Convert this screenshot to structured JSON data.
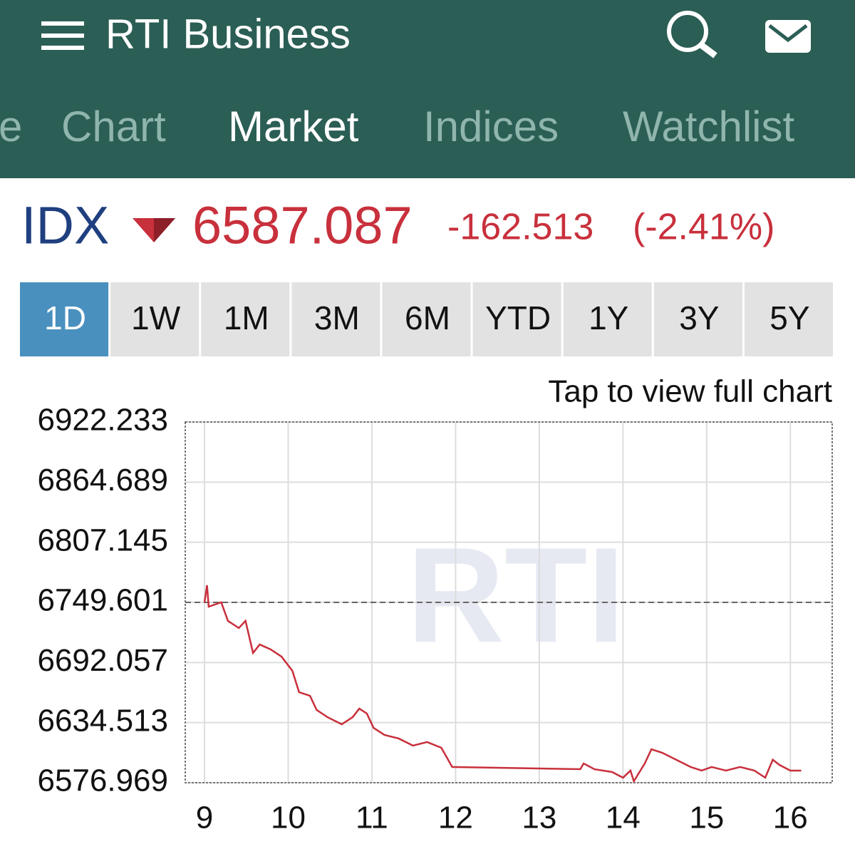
{
  "header": {
    "title": "RTI Business"
  },
  "tabs": [
    "e",
    "Chart",
    "Market",
    "Indices",
    "Watchlist"
  ],
  "active_tab": 2,
  "quote": {
    "symbol": "IDX",
    "price": "6587.087",
    "change": "-162.513",
    "percent": "(-2.41%)"
  },
  "ranges": [
    "1D",
    "1W",
    "1M",
    "3M",
    "6M",
    "YTD",
    "1Y",
    "3Y",
    "5Y"
  ],
  "active_range": 0,
  "link": "Tap to view full chart",
  "chart_data": {
    "type": "line",
    "watermark": "RTI",
    "color": "#c8303c",
    "x": [
      9.0,
      9.03,
      9.05,
      9.2,
      9.28,
      9.41,
      9.49,
      9.58,
      9.66,
      9.79,
      9.92,
      10.05,
      10.13,
      10.26,
      10.34,
      10.47,
      10.64,
      10.77,
      10.85,
      10.94,
      11.02,
      11.15,
      11.32,
      11.49,
      11.66,
      11.83,
      11.96,
      12.0,
      13.49,
      13.53,
      13.66,
      13.87,
      14.0,
      14.09,
      14.13,
      14.26,
      14.34,
      14.47,
      14.64,
      14.81,
      14.94,
      15.06,
      15.23,
      15.4,
      15.57,
      15.7,
      15.79,
      15.87,
      16.0,
      16.13
    ],
    "values": [
      6749.6,
      6766.0,
      6745.5,
      6749.6,
      6731.9,
      6725.0,
      6731.9,
      6701.2,
      6709.3,
      6704.6,
      6697.7,
      6684.1,
      6663.6,
      6660.2,
      6646.6,
      6639.7,
      6632.9,
      6639.7,
      6647.9,
      6643.2,
      6629.5,
      6622.7,
      6619.3,
      6612.5,
      6615.9,
      6610.4,
      6592.0,
      6592.0,
      6589.9,
      6595.4,
      6589.9,
      6587.2,
      6581.8,
      6588.6,
      6578.3,
      6595.4,
      6609.0,
      6605.6,
      6598.8,
      6592.0,
      6588.6,
      6592.0,
      6588.6,
      6592.0,
      6588.6,
      6581.8,
      6599.0,
      6594.0,
      6588.6,
      6588.6
    ],
    "reference": 6749.601,
    "xlim": [
      8.77,
      16.5
    ],
    "xticks": [
      9,
      10,
      11,
      12,
      13,
      14,
      15,
      16
    ],
    "ylim": [
      6576.969,
      6922.233
    ],
    "yticks": [
      6576.969,
      6634.513,
      6692.057,
      6749.601,
      6807.145,
      6864.689,
      6922.233
    ],
    "grid": true
  }
}
